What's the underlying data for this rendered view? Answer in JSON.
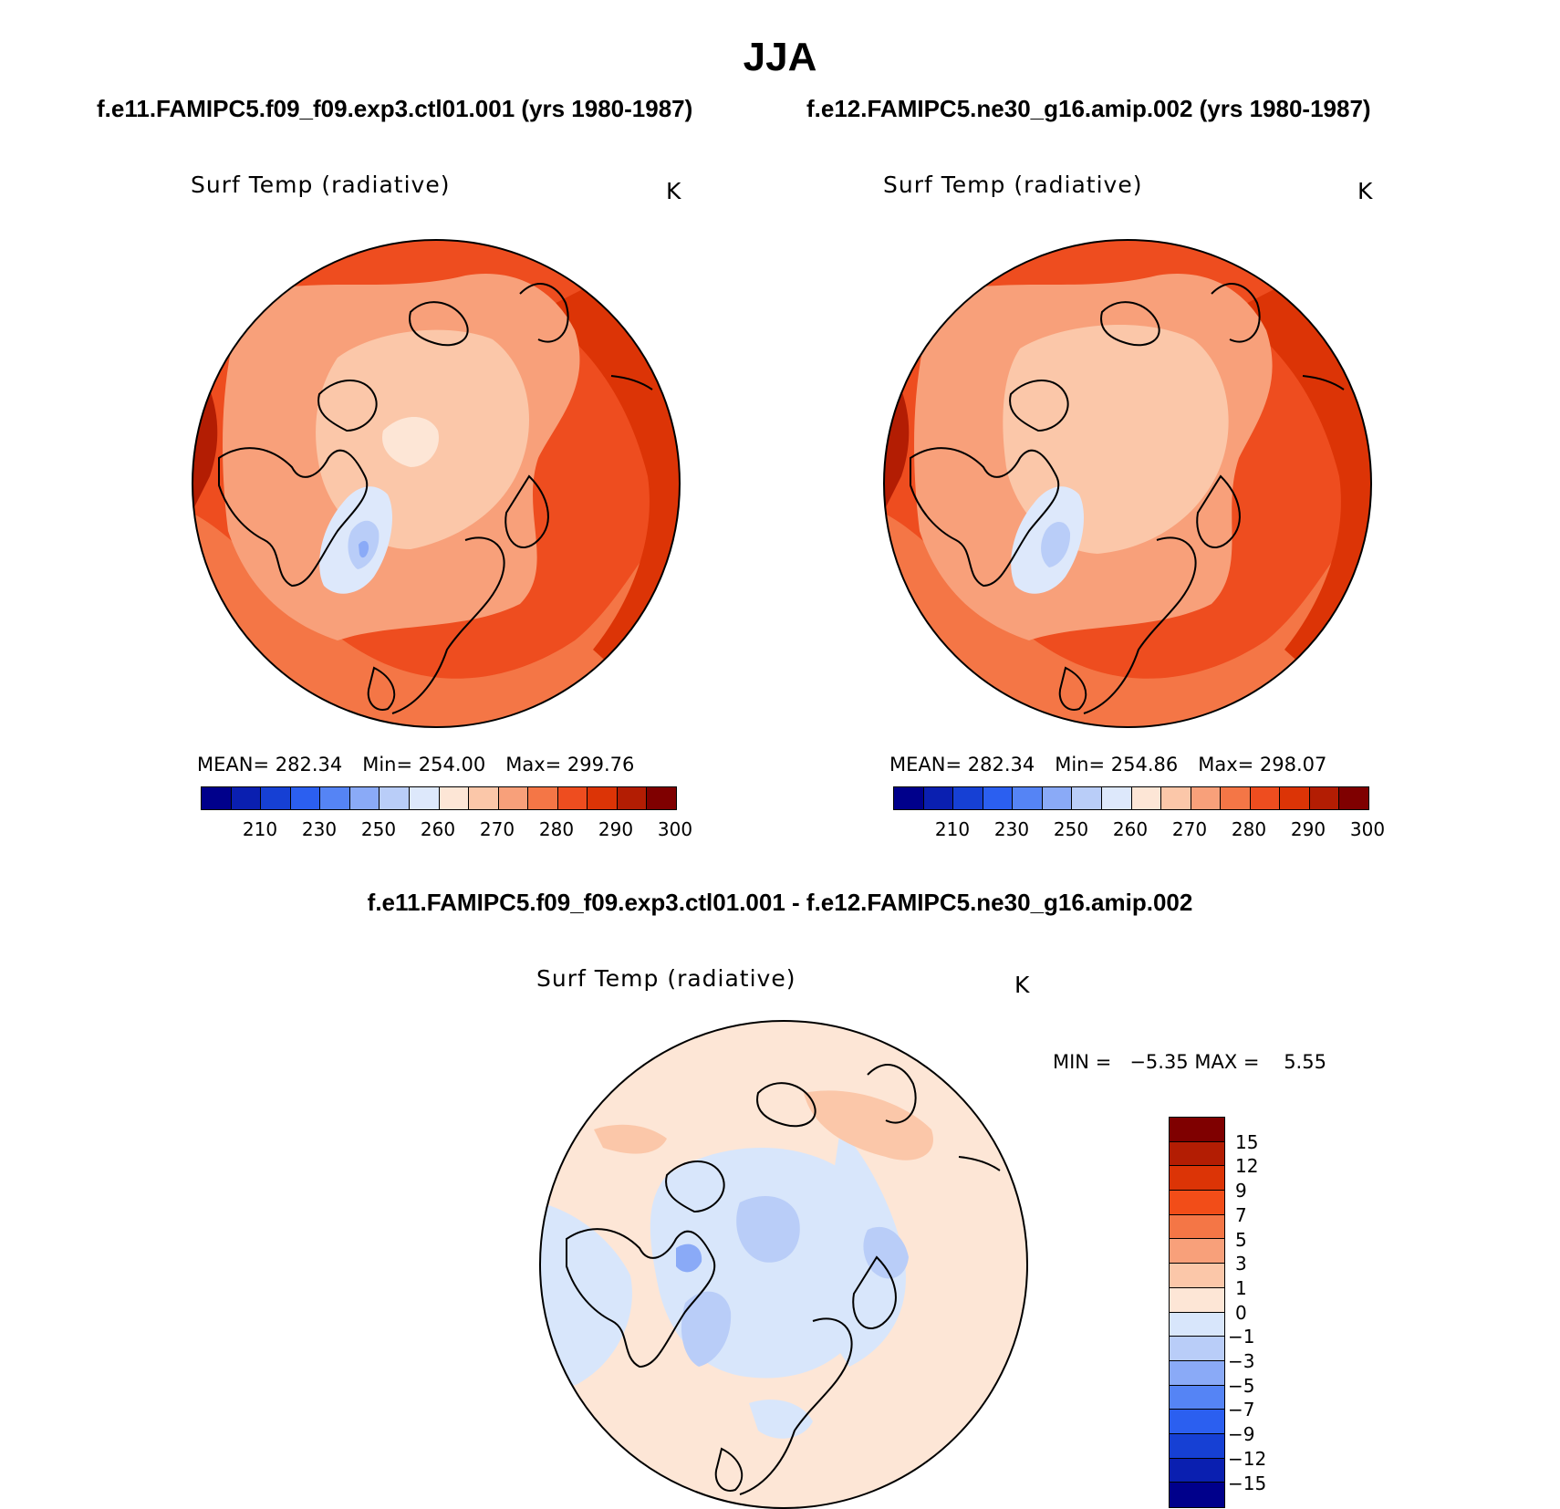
{
  "title": "JJA",
  "panels": {
    "left": {
      "case": "f.e11.FAMIPC5.f09_f09.exp3.ctl01.001 (yrs 1980-1987)",
      "var": "Surf Temp (radiative)",
      "units": "K",
      "mean": "MEAN= 282.34",
      "min": "Min= 254.00",
      "max": "Max= 299.76"
    },
    "right": {
      "case": "f.e12.FAMIPC5.ne30_g16.amip.002 (yrs 1980-1987)",
      "var": "Surf Temp (radiative)",
      "units": "K",
      "mean": "MEAN= 282.34",
      "min": "Min= 254.86",
      "max": "Max= 298.07"
    },
    "diff": {
      "case": "f.e11.FAMIPC5.f09_f09.exp3.ctl01.001 - f.e12.FAMIPC5.ne30_g16.amip.002",
      "var": "Surf Temp (radiative)",
      "units": "K",
      "minmax": "MIN =   −5.35 MAX =    5.55"
    }
  },
  "abs_colorbar": {
    "colors": [
      "#00008b",
      "#0a1fb0",
      "#1640d4",
      "#2b5ff0",
      "#5584f5",
      "#8aaaf7",
      "#b9cdf8",
      "#dde8fb",
      "#fde6d6",
      "#fbc7a9",
      "#f8a07a",
      "#f47646",
      "#ee4d1f",
      "#dc3406",
      "#b31d03",
      "#7f0000"
    ],
    "labels": [
      "210",
      "230",
      "250",
      "260",
      "270",
      "280",
      "290",
      "300"
    ]
  },
  "diff_colorbar": {
    "colors": [
      "#7f0000",
      "#b31d03",
      "#dc3406",
      "#f24d18",
      "#f47646",
      "#f8a07a",
      "#fbc7a9",
      "#fde6d6",
      "#d8e6fb",
      "#b9cdf8",
      "#8aaaf7",
      "#5584f5",
      "#2b5ff0",
      "#1640d4",
      "#0a1fb0",
      "#00008b"
    ],
    "labels": [
      "15",
      "12",
      "9",
      "7",
      "5",
      "3",
      "1",
      "0",
      "−1",
      "−3",
      "−5",
      "−7",
      "−9",
      "−12",
      "−15"
    ]
  }
}
